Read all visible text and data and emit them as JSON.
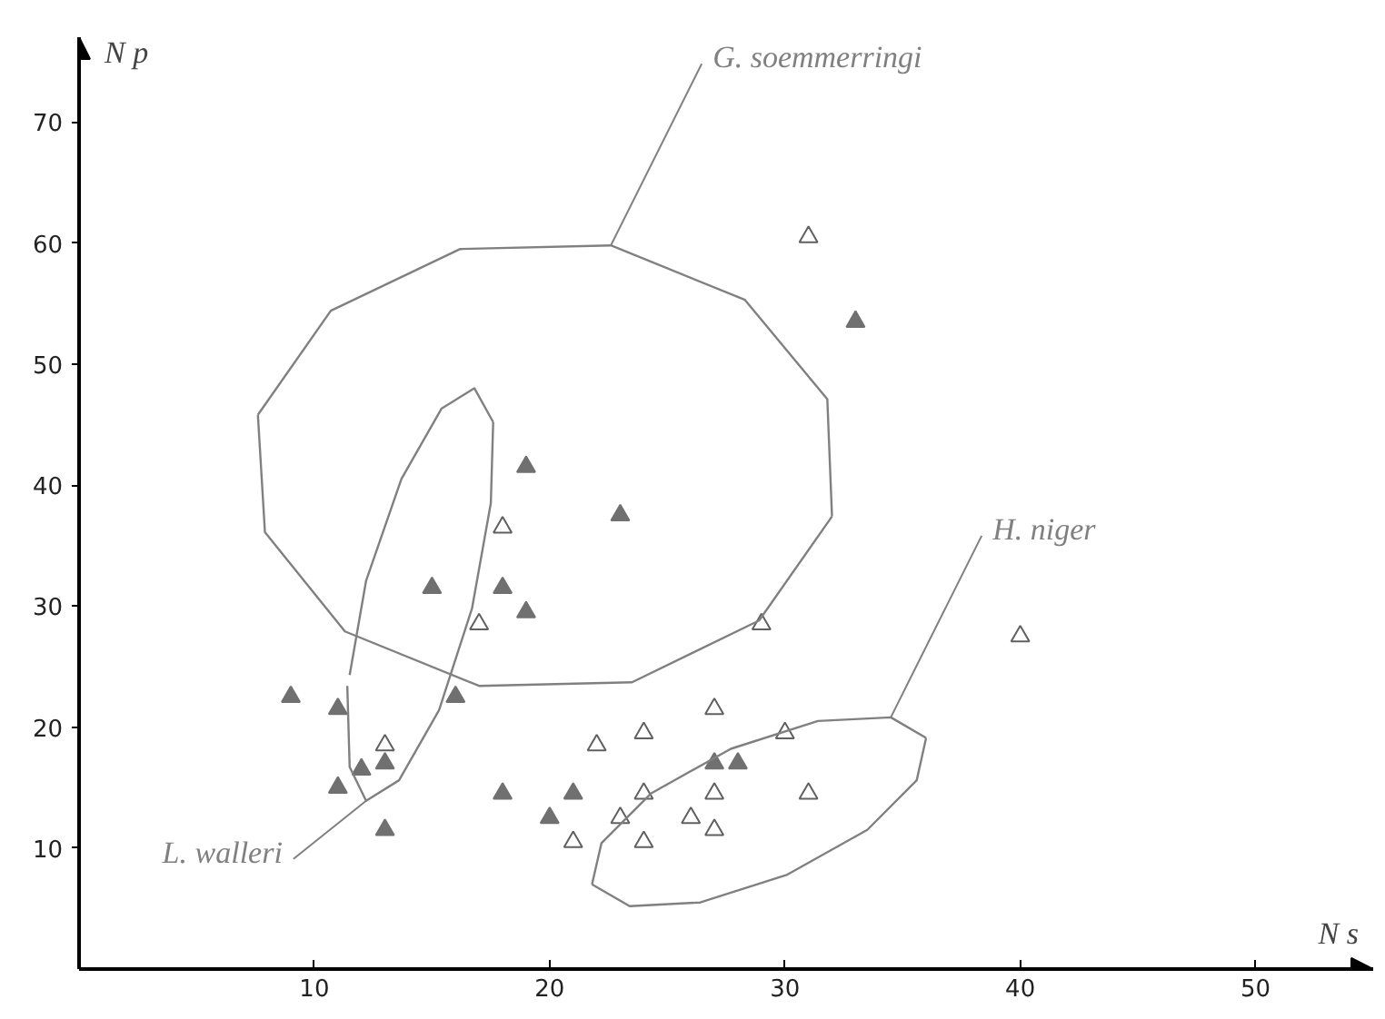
{
  "chart_data": {
    "type": "scatter",
    "xlabel": "N s",
    "ylabel": "N p",
    "xlim": [
      0,
      55
    ],
    "ylim": [
      0,
      77
    ],
    "xticks": [
      10,
      20,
      30,
      40,
      50
    ],
    "yticks": [
      10,
      20,
      30,
      40,
      50,
      60,
      70
    ],
    "grid": false,
    "marker": "triangle",
    "series": [
      {
        "color": "#707070",
        "x": [
          19,
          23,
          33,
          15,
          18,
          19,
          9,
          11,
          16,
          12,
          11,
          13,
          13,
          18,
          21,
          20,
          27,
          28
        ],
        "values": [
          41.5,
          37.5,
          53.5,
          31.5,
          31.5,
          29.5,
          22.5,
          21.5,
          22.5,
          16.5,
          15,
          17,
          11.5,
          14.5,
          14.5,
          12.5,
          17,
          17
        ]
      },
      {
        "color": "#606060",
        "marker": "triangle_open",
        "x": [
          31,
          40,
          30,
          31,
          18,
          17,
          13,
          22,
          29,
          27,
          24,
          24,
          27,
          23,
          26,
          27,
          21,
          24
        ],
        "values": [
          60.5,
          27.5,
          19.5,
          14.5,
          36.5,
          28.5,
          18.5,
          18.5,
          28.5,
          21.5,
          19.5,
          14.5,
          14.5,
          12.5,
          12.5,
          11.5,
          10.5,
          10.5
        ]
      },
      {
        "type": "line",
        "name": "G. soemmerringi",
        "color": "#808080",
        "marker": "none",
        "x": [
          7.6,
          10.7,
          16.2,
          22.6,
          28.3,
          31.8,
          32.0
        ],
        "values": [
          45.8,
          54.4,
          59.5,
          59.8,
          55.3,
          47.1,
          37.4
        ]
      },
      {
        "type": "line",
        "color": "#808080",
        "marker": "none",
        "x": [
          7.6,
          7.9,
          11.3,
          17.0,
          23.5,
          28.9,
          32.0
        ],
        "values": [
          45.8,
          36.1,
          27.9,
          23.4,
          23.7,
          28.8,
          37.4
        ]
      },
      {
        "type": "line",
        "name": "L. walleri",
        "color": "#808080",
        "marker": "none",
        "x": [
          11.4,
          11.5,
          12.2,
          13.6,
          15.3,
          16.7,
          17.5,
          17.6
        ],
        "values": [
          23.4,
          16.7,
          13.9,
          15.6,
          21.4,
          29.8,
          38.5,
          45.2
        ]
      },
      {
        "type": "line",
        "color": "#808080",
        "marker": "none",
        "x": [
          11.5,
          12.2,
          13.7,
          15.4,
          16.8,
          17.6
        ],
        "values": [
          24.3,
          32.1,
          40.5,
          46.3,
          48.0,
          45.2
        ]
      },
      {
        "type": "line",
        "name": "H. niger",
        "color": "#808080",
        "marker": "none",
        "x": [
          21.8,
          22.2,
          24.3,
          27.7,
          31.4,
          34.5,
          36.0
        ],
        "values": [
          7.0,
          10.4,
          14.5,
          18.2,
          20.5,
          20.8,
          19.1
        ]
      },
      {
        "type": "line",
        "color": "#808080",
        "marker": "none",
        "x": [
          21.8,
          23.4,
          26.4,
          30.1,
          33.5,
          35.6,
          36.0
        ],
        "values": [
          7.0,
          5.2,
          5.5,
          7.8,
          11.5,
          15.6,
          19.1
        ]
      }
    ]
  }
}
